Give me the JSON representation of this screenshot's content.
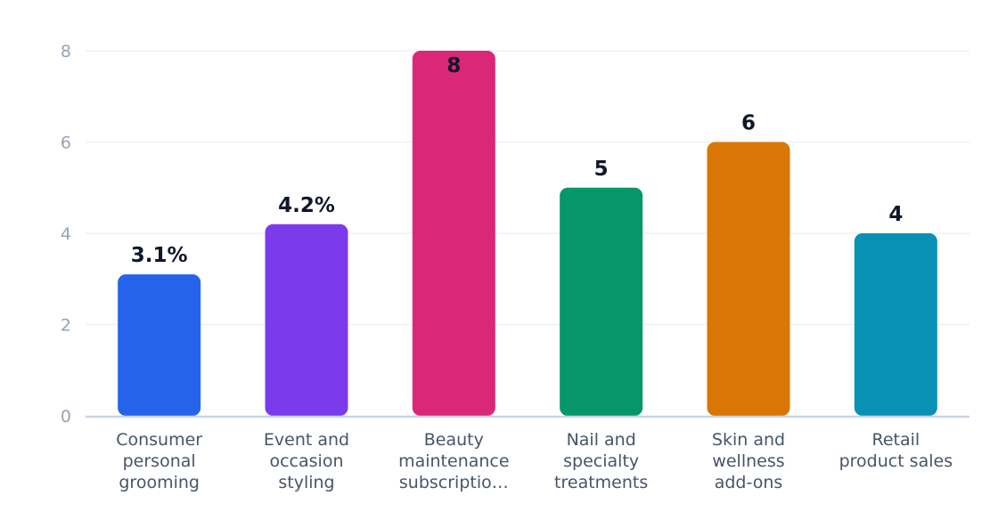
{
  "chart_data": {
    "type": "bar",
    "title": "",
    "xlabel": "",
    "ylabel": "",
    "ylim": [
      0,
      8
    ],
    "yticks": [
      0,
      2,
      4,
      6,
      8
    ],
    "grid": true,
    "legend": "none",
    "categories": [
      [
        "Consumer",
        "personal",
        "grooming"
      ],
      [
        "Event and",
        "occasion",
        "styling"
      ],
      [
        "Beauty",
        "maintenance",
        "subscriptio…"
      ],
      [
        "Nail and",
        "specialty",
        "treatments"
      ],
      [
        "Skin and",
        "wellness",
        "add-ons"
      ],
      [
        "Retail",
        "product sales"
      ]
    ],
    "values": [
      3.1,
      4.2,
      8,
      5,
      6,
      4
    ],
    "data_labels": [
      "3.1%",
      "4.2%",
      "8",
      "5",
      "6",
      "4"
    ],
    "colors": [
      "#2563eb",
      "#7c3aed",
      "#db2777",
      "#059669",
      "#d97706",
      "#0891b2"
    ]
  }
}
